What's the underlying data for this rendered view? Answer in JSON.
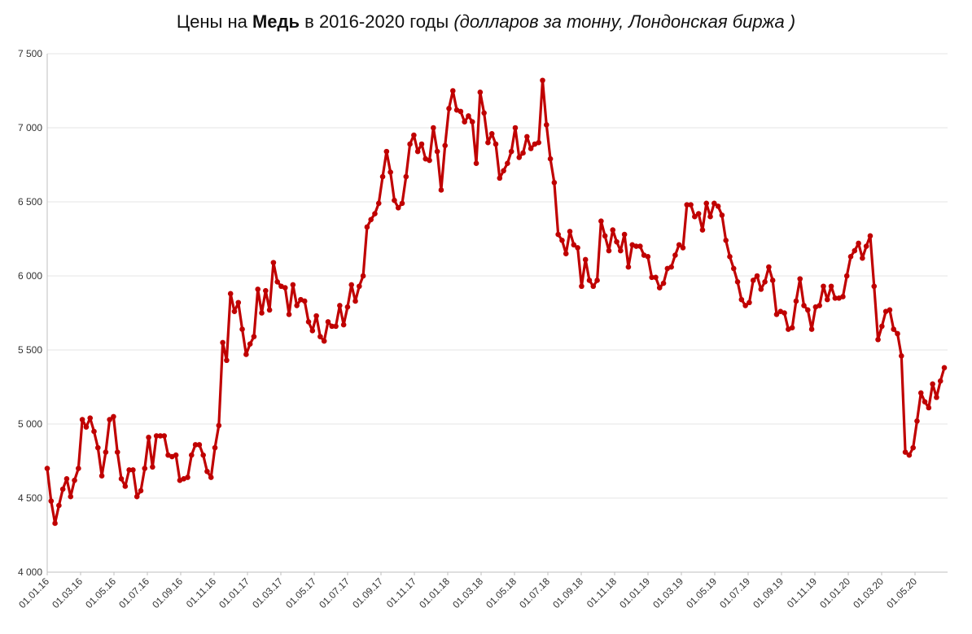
{
  "chart_data": {
    "type": "line",
    "title": {
      "prefix": "Цены на ",
      "bold": "Медь",
      "middle": " в 2016-2020 годы ",
      "italic": "(долларов за тонну, Лондонская биржа )"
    },
    "xlabel": "",
    "ylabel": "",
    "ylim": [
      4000,
      7500
    ],
    "yticks": [
      4000,
      4500,
      5000,
      5500,
      6000,
      6500,
      7000,
      7500
    ],
    "ytick_labels": [
      "4 000",
      "4 500",
      "5 000",
      "5 500",
      "6 000",
      "6 500",
      "7 000",
      "7 500"
    ],
    "xtick_labels": [
      "01.01.16",
      "01.03.16",
      "01.05.16",
      "01.07.16",
      "01.09.16",
      "01.11.16",
      "01.01.17",
      "01.03.17",
      "01.05.17",
      "01.07.17",
      "01.09.17",
      "01.11.17",
      "01.01.18",
      "01.03.18",
      "01.05.18",
      "01.07.18",
      "01.09.18",
      "01.11.18",
      "01.01.19",
      "01.03.19",
      "01.05.19",
      "01.07.19",
      "01.09.19",
      "01.11.19",
      "01.01.20",
      "01.03.20",
      "01.05.20"
    ],
    "grid": "horizontal",
    "line_color": "#c00000",
    "series": [
      {
        "name": "",
        "values": [
          4700,
          4480,
          4330,
          4450,
          4560,
          4630,
          4510,
          4620,
          4700,
          5030,
          4980,
          5040,
          4950,
          4840,
          4650,
          4810,
          5030,
          5050,
          4810,
          4630,
          4580,
          4690,
          4690,
          4510,
          4550,
          4700,
          4910,
          4710,
          4920,
          4920,
          4920,
          4790,
          4780,
          4790,
          4620,
          4630,
          4640,
          4790,
          4860,
          4860,
          4790,
          4680,
          4640,
          4840,
          4990,
          5550,
          5430,
          5880,
          5760,
          5820,
          5640,
          5470,
          5540,
          5590,
          5910,
          5750,
          5900,
          5770,
          6090,
          5960,
          5930,
          5920,
          5740,
          5940,
          5800,
          5840,
          5830,
          5690,
          5630,
          5730,
          5590,
          5560,
          5690,
          5660,
          5660,
          5800,
          5670,
          5790,
          5940,
          5830,
          5930,
          6000,
          6330,
          6380,
          6420,
          6490,
          6670,
          6840,
          6700,
          6510,
          6460,
          6490,
          6670,
          6890,
          6950,
          6840,
          6890,
          6790,
          6780,
          7000,
          6840,
          6580,
          6880,
          7130,
          7250,
          7120,
          7110,
          7040,
          7080,
          7040,
          6760,
          7240,
          7100,
          6900,
          6960,
          6890,
          6660,
          6710,
          6760,
          6840,
          7000,
          6800,
          6830,
          6940,
          6860,
          6890,
          6900,
          7320,
          7020,
          6790,
          6630,
          6280,
          6240,
          6150,
          6300,
          6210,
          6190,
          5930,
          6110,
          5970,
          5930,
          5970,
          6370,
          6270,
          6170,
          6310,
          6230,
          6170,
          6280,
          6060,
          6210,
          6200,
          6200,
          6140,
          6130,
          5990,
          5990,
          5920,
          5950,
          6050,
          6060,
          6140,
          6210,
          6190,
          6480,
          6480,
          6400,
          6420,
          6310,
          6490,
          6400,
          6490,
          6470,
          6410,
          6240,
          6130,
          6050,
          5960,
          5840,
          5800,
          5820,
          5970,
          6000,
          5910,
          5960,
          6060,
          5970,
          5740,
          5760,
          5750,
          5640,
          5650,
          5830,
          5980,
          5800,
          5770,
          5640,
          5790,
          5800,
          5930,
          5840,
          5930,
          5850,
          5850,
          5860,
          6000,
          6130,
          6170,
          6220,
          6120,
          6200,
          6270,
          5930,
          5570,
          5660,
          5760,
          5770,
          5640,
          5610,
          5460,
          4810,
          4790,
          4840,
          5020,
          5210,
          5150,
          5110,
          5270,
          5180,
          5290,
          5380
        ]
      }
    ]
  }
}
